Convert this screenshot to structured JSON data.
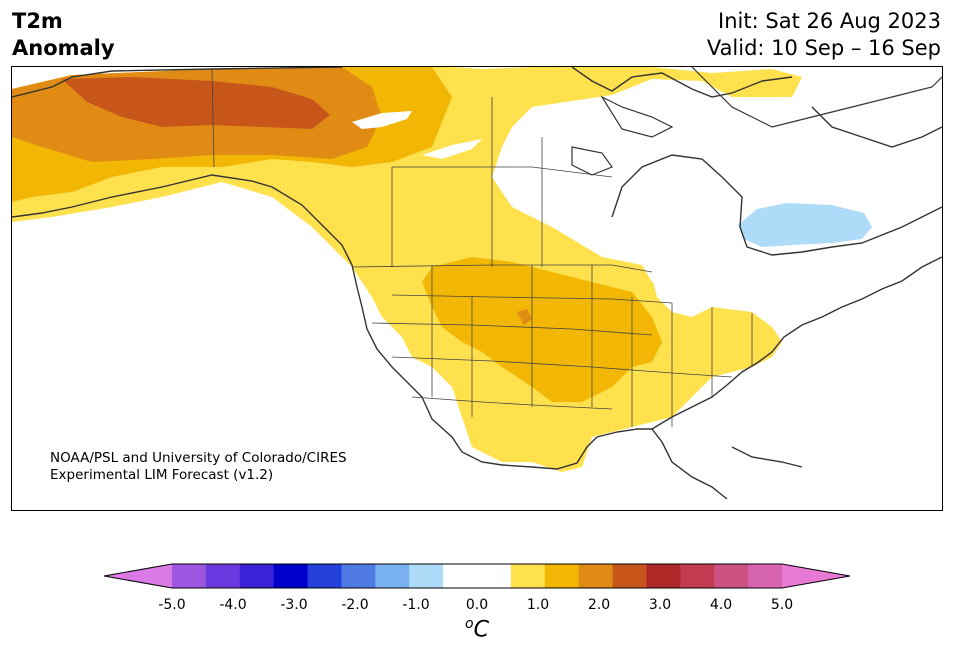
{
  "header": {
    "title_line1": "T2m",
    "title_line2": "Anomaly",
    "init": "Init: Sat 26 Aug 2023",
    "valid": "Valid: 10 Sep – 16 Sep"
  },
  "credit": {
    "line1": "NOAA/PSL and University of Colorado/CIRES",
    "line2": "Experimental LIM Forecast (v1.2)"
  },
  "colorbar": {
    "unit": "C",
    "unit_superscript": "o",
    "tick_labels": [
      "-5.0",
      "-4.0",
      "-3.0",
      "-2.0",
      "-1.0",
      "0.0",
      "1.0",
      "2.0",
      "3.0",
      "4.0",
      "5.0"
    ],
    "under_color": "#d97ae6",
    "over_color": "#e87ad6",
    "colors": [
      "#d97ae6",
      "#9c56e0",
      "#6a3ae0",
      "#3a22d6",
      "#0000cc",
      "#2640dc",
      "#4f7ae6",
      "#78b0f2",
      "#aedcf8",
      "#ffffff",
      "#ffffff",
      "#ffe14d",
      "#f2b705",
      "#e08c14",
      "#c8561a",
      "#b02828",
      "#c23c52",
      "#cc5282",
      "#d865b0",
      "#e87ad6"
    ]
  },
  "map": {
    "region": "North America",
    "anomaly_colors": {
      "plus_0_5": "#ffe14d",
      "plus_1_0": "#f2b705",
      "plus_1_5": "#e08c14",
      "plus_2_0": "#c8561a",
      "minus_0_5": "#aedcf8"
    }
  }
}
